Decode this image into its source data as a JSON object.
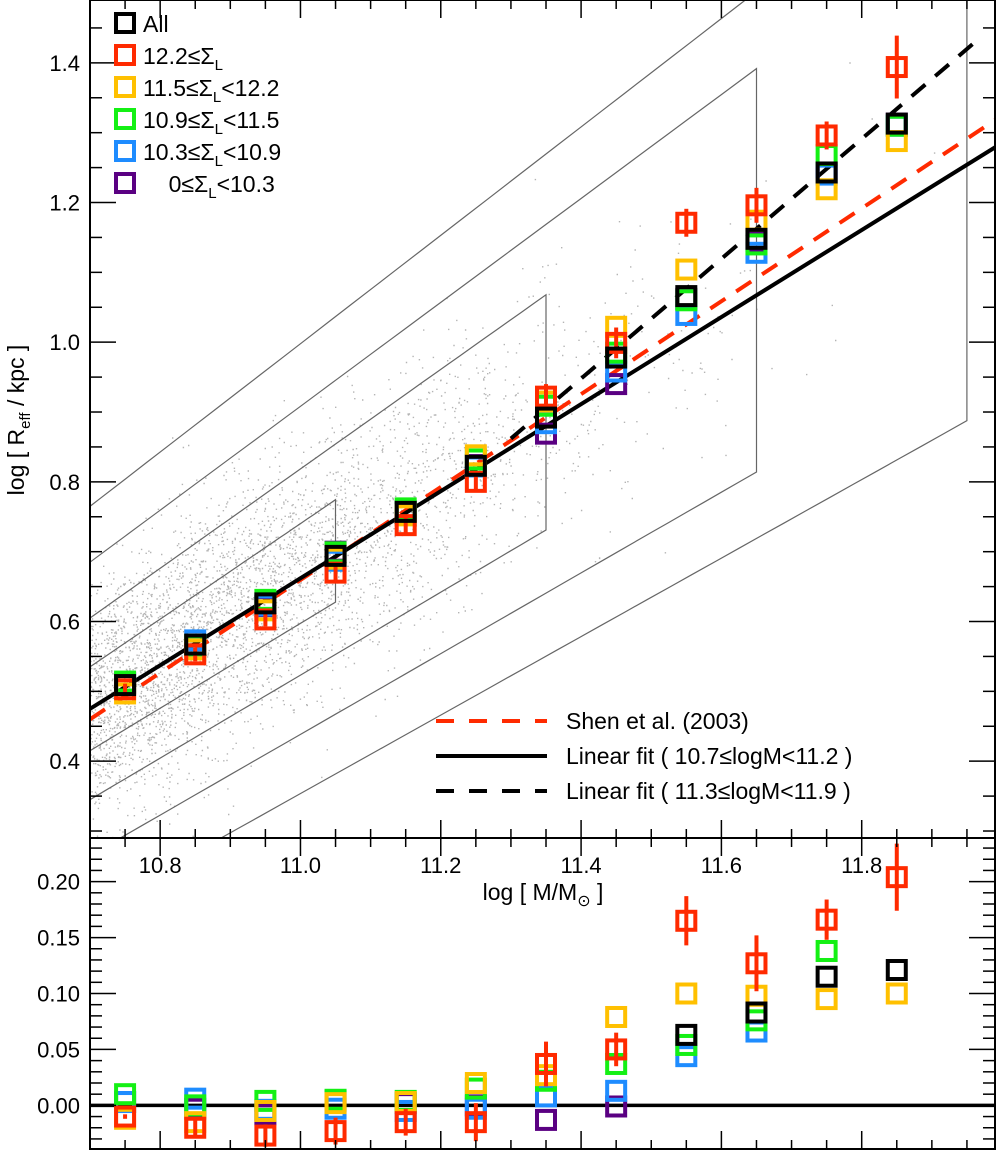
{
  "chart_data": [
    {
      "panel": "top",
      "type": "scatter",
      "title": "",
      "xlabel": "log [ M/M⊙ ]",
      "ylabel": "log [ R_eff / kpc ]",
      "xlim": [
        10.7,
        11.99
      ],
      "ylim": [
        0.29,
        1.49
      ],
      "x_ticks": [
        10.8,
        11.0,
        11.2,
        11.4,
        11.6,
        11.8
      ],
      "x_tick_labels": [
        "10.8",
        "11.0",
        "11.2",
        "11.4",
        "11.6",
        "11.8"
      ],
      "y_ticks": [
        0.4,
        0.6,
        0.8,
        1.0,
        1.2,
        1.4
      ],
      "y_tick_labels": [
        "0.4",
        "0.6",
        "0.8",
        "1.0",
        "1.2",
        "1.4"
      ],
      "grid": false,
      "background": "grey scatter cloud with density contours",
      "x": [
        10.75,
        10.85,
        10.95,
        11.05,
        11.15,
        11.25,
        11.35,
        11.45,
        11.55,
        11.65,
        11.75,
        11.85
      ],
      "series": [
        {
          "name": "All",
          "label_main": "All",
          "label_sub": "",
          "label_tail": "",
          "color": "#000000",
          "values": [
            0.509,
            0.567,
            0.626,
            0.694,
            0.757,
            0.823,
            0.892,
            0.978,
            1.066,
            1.148,
            1.243,
            1.313
          ]
        },
        {
          "name": "12.2≤ΣL",
          "label_main": "12.2≤Σ",
          "label_sub": "L",
          "label_tail": "",
          "color": "#ff2a00",
          "values": [
            0.503,
            0.553,
            0.603,
            0.67,
            0.738,
            0.8,
            0.922,
            0.999,
            1.171,
            1.196,
            1.296,
            1.394
          ],
          "errors": [
            0.008,
            0.01,
            0.01,
            0.012,
            0.012,
            0.015,
            0.018,
            0.022,
            0.02,
            0.025,
            0.02,
            0.045
          ]
        },
        {
          "name": "11.5≤ΣL<12.2",
          "label_main": "11.5≤Σ",
          "label_sub": "L",
          "label_tail": "<12.2",
          "color": "#ffc000",
          "values": [
            0.497,
            0.56,
            0.616,
            0.69,
            0.752,
            0.838,
            0.915,
            1.022,
            1.104,
            1.174,
            1.219,
            1.288
          ]
        },
        {
          "name": "10.9≤ΣL<11.5",
          "label_main": "10.9≤Σ",
          "label_sub": "L",
          "label_tail": "<11.5",
          "color": "#14f014",
          "values": [
            0.514,
            0.566,
            0.631,
            0.699,
            0.762,
            0.832,
            0.909,
            0.985,
            1.06,
            1.14,
            1.268,
            1.31
          ]
        },
        {
          "name": "10.3≤ΣL<10.9",
          "label_main": "10.3≤Σ",
          "label_sub": "L",
          "label_tail": "<10.9",
          "color": "#1e8cff",
          "values": [
            0.511,
            0.573,
            0.623,
            0.687,
            0.753,
            0.822,
            0.884,
            0.958,
            1.039,
            1.128,
            1.24,
            1.31
          ]
        },
        {
          "name": "0≤ΣL<10.3",
          "label_main": "  0≤Σ",
          "label_sub": "L",
          "label_tail": "<10.3",
          "color": "#5a0082",
          "values": [
            0.512,
            0.566,
            0.622,
            0.7,
            0.758,
            0.824,
            0.869,
            0.94,
            1.062,
            1.145,
            1.243,
            1.313
          ]
        }
      ],
      "lines": [
        {
          "name": "Shen et al. (2003)",
          "style": "dashed",
          "color": "#ff2a00",
          "x": [
            10.7,
            11.99
          ],
          "y": [
            0.46,
            1.318
          ]
        },
        {
          "name": "Linear fit ( 10.7≤logM<11.2 )",
          "style": "solid",
          "color": "#000000",
          "x": [
            10.7,
            11.99
          ],
          "y": [
            0.475,
            1.279
          ]
        },
        {
          "name": "Linear fit ( 11.3≤logM<11.9 )",
          "style": "dashed",
          "color": "#000000",
          "x": [
            11.3,
            11.97
          ],
          "y": [
            0.862,
            1.437
          ]
        }
      ],
      "legend_markers_position": "top-left",
      "legend_lines_position": "bottom-right"
    },
    {
      "panel": "bottom",
      "type": "scatter",
      "xlabel": "",
      "ylabel": "",
      "xlim": [
        10.7,
        11.99
      ],
      "ylim": [
        -0.039,
        0.239
      ],
      "y_ticks": [
        0.0,
        0.05,
        0.1,
        0.15,
        0.2
      ],
      "y_tick_labels": [
        "0.00",
        "0.05",
        "0.10",
        "0.15",
        "0.20"
      ],
      "reference_line": 0.0,
      "x": [
        10.75,
        10.85,
        10.95,
        11.05,
        11.15,
        11.25,
        11.35,
        11.45,
        11.55,
        11.65,
        11.75,
        11.85
      ],
      "series": [
        {
          "name": "All",
          "color": "#000000",
          "values": [
            null,
            null,
            null,
            null,
            null,
            null,
            null,
            null,
            0.063,
            0.083,
            0.115,
            0.121
          ]
        },
        {
          "name": "12.2≤ΣL",
          "color": "#ff2a00",
          "values": [
            -0.01,
            -0.02,
            -0.027,
            -0.023,
            -0.015,
            -0.015,
            0.037,
            0.05,
            0.165,
            0.127,
            0.166,
            0.204
          ],
          "errors": [
            0.002,
            0.008,
            0.01,
            0.012,
            0.012,
            0.017,
            0.02,
            0.015,
            0.022,
            0.025,
            0.018,
            0.03
          ]
        },
        {
          "name": "11.5≤ΣL<12.2",
          "color": "#ffc000",
          "values": [
            -0.012,
            -0.015,
            -0.005,
            0.002,
            0.003,
            0.02,
            0.027,
            0.079,
            0.1,
            0.098,
            0.095,
            0.1
          ]
        },
        {
          "name": "10.9≤ΣL<11.5",
          "color": "#14f014",
          "values": [
            0.01,
            0.0,
            0.004,
            0.005,
            0.004,
            0.015,
            0.022,
            0.037,
            0.054,
            0.076,
            0.138,
            null
          ]
        },
        {
          "name": "10.3≤ΣL<10.9",
          "color": "#1e8cff",
          "values": [
            0.003,
            0.006,
            -0.004,
            -0.003,
            -0.005,
            -0.003,
            0.008,
            0.013,
            0.044,
            0.066,
            null,
            null
          ]
        },
        {
          "name": "0≤ΣL<10.3",
          "color": "#5a0082",
          "values": [
            0.003,
            -0.003,
            -0.008,
            0.004,
            0.002,
            0.0,
            -0.013,
            -0.001,
            null,
            null,
            null,
            null
          ]
        }
      ]
    }
  ]
}
